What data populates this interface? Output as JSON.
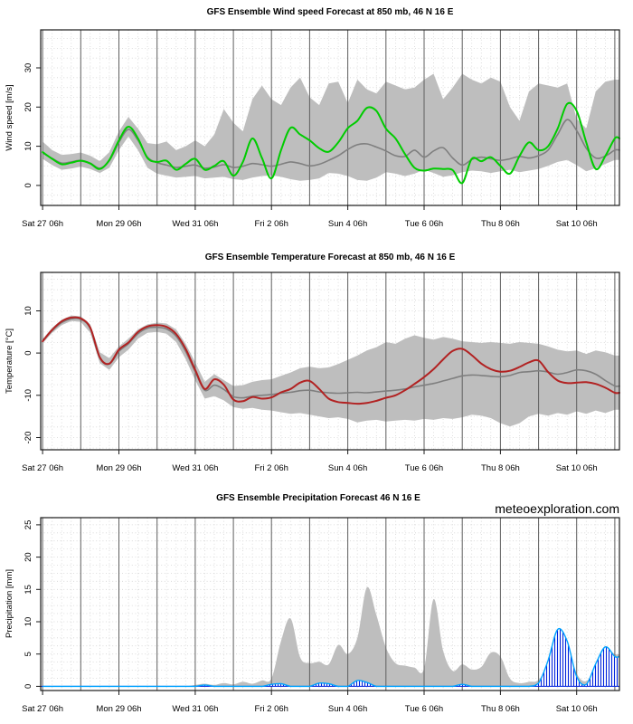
{
  "watermark": {
    "text": "meteoexploration.com",
    "color": "#4a7ab0"
  },
  "x_axis": {
    "tick_labels": [
      "Sat 27 06h",
      "Mon 29 06h",
      "Wed 31 06h",
      "Fri 2 06h",
      "Sun 4 06h",
      "Tue 6 06h",
      "Thu 8 06h",
      "Sat 10 06h"
    ],
    "tick_days": [
      0,
      2,
      4,
      6,
      8,
      10,
      12,
      14
    ],
    "num_day_lines": 15,
    "minor_tick_days": 0.25
  },
  "colors": {
    "band": "#bebebe",
    "ensemble_mean": "#7f7f7f",
    "wind_control": "#00cc00",
    "temp_control": "#b22222",
    "precip_control_hatch": "#0022dd",
    "precip_control_outline": "#00a3ff",
    "day_gridline": "#5f5f5f",
    "minor_grid": "#d4d4d4",
    "axis": "#1a1a1a"
  },
  "chart_data": [
    {
      "type": "line",
      "title": "GFS Ensemble Wind speed Forecast at 850 mb, 46 N 16 E",
      "ylabel": "Wind speed [m/s]",
      "ylim": [
        -5.1,
        39.7
      ],
      "yticks": [
        0,
        10,
        20,
        30
      ],
      "grid_step_y": 2.5,
      "x_step_days": 0.25,
      "series": [
        {
          "name": "ensemble spread",
          "kind": "band",
          "upper": [
            11.2,
            9.0,
            7.8,
            8.0,
            8.4,
            7.6,
            6.2,
            8.5,
            13.8,
            17.5,
            14.5,
            10.8,
            10.5,
            11.2,
            9.0,
            10.0,
            11.5,
            10.0,
            13.0,
            19.5,
            16.0,
            13.8,
            22.0,
            25.5,
            22.0,
            20.5,
            25.0,
            27.5,
            22.5,
            20.5,
            26.0,
            26.5,
            21.0,
            27.0,
            24.5,
            23.5,
            26.5,
            25.5,
            24.5,
            25.0,
            27.0,
            28.5,
            22.0,
            25.0,
            28.5,
            27.0,
            26.0,
            27.5,
            26.5,
            20.0,
            16.5,
            24.0,
            26.0,
            25.5,
            25.0,
            26.0,
            17.0,
            14.5,
            24.0,
            26.5,
            27.0
          ],
          "lower": [
            6.8,
            5.2,
            4.0,
            4.3,
            4.8,
            4.2,
            3.2,
            4.5,
            9.0,
            12.5,
            9.0,
            4.5,
            3.0,
            2.5,
            2.0,
            2.2,
            2.4,
            1.8,
            2.0,
            2.2,
            1.6,
            1.4,
            2.0,
            2.4,
            2.6,
            2.2,
            1.6,
            1.2,
            1.4,
            1.8,
            3.2,
            3.0,
            2.4,
            1.4,
            1.2,
            2.0,
            3.4,
            3.0,
            2.4,
            3.0,
            4.0,
            3.2,
            2.2,
            2.6,
            3.4,
            3.8,
            3.6,
            3.2,
            3.6,
            4.0,
            3.4,
            3.8,
            4.2,
            5.0,
            6.0,
            6.5,
            5.2,
            3.6,
            4.4,
            5.5,
            6.5
          ]
        },
        {
          "name": "ensemble mean",
          "kind": "line",
          "color_key": "ensemble_mean",
          "width": 1.6,
          "values": [
            8.3,
            6.9,
            5.7,
            6.0,
            6.4,
            5.7,
            4.4,
            6.3,
            11.0,
            14.3,
            11.5,
            7.2,
            5.8,
            5.2,
            4.6,
            4.9,
            5.2,
            4.4,
            4.7,
            5.3,
            4.6,
            4.9,
            5.6,
            5.3,
            4.9,
            5.4,
            6.0,
            5.6,
            5.0,
            5.4,
            6.4,
            7.6,
            9.2,
            10.4,
            10.6,
            9.8,
            8.8,
            7.6,
            7.4,
            9.0,
            7.2,
            8.8,
            9.6,
            7.0,
            5.2,
            6.6,
            7.2,
            6.8,
            6.4,
            6.8,
            7.4,
            7.0,
            7.6,
            9.0,
            13.0,
            16.8,
            14.0,
            9.5,
            7.0,
            7.5,
            9.0
          ]
        },
        {
          "name": "control run",
          "kind": "line",
          "color_key": "wind_control",
          "width": 2,
          "values": [
            8.5,
            6.8,
            5.4,
            5.8,
            6.3,
            5.6,
            4.2,
            6.5,
            11.5,
            15.0,
            12.0,
            7.0,
            6.0,
            6.3,
            4.0,
            5.5,
            6.8,
            4.0,
            5.0,
            6.2,
            2.5,
            6.0,
            12.0,
            7.0,
            1.8,
            9.0,
            14.7,
            13.0,
            11.5,
            9.5,
            8.6,
            11.0,
            14.6,
            16.5,
            19.8,
            19.0,
            14.5,
            12.0,
            8.0,
            4.5,
            3.8,
            4.3,
            4.2,
            3.9,
            0.6,
            6.8,
            6.2,
            7.2,
            5.0,
            3.0,
            7.5,
            11.0,
            9.0,
            10.0,
            14.5,
            20.8,
            19.0,
            11.0,
            4.2,
            7.5,
            12.0
          ]
        }
      ]
    },
    {
      "type": "line",
      "title": "GFS Ensemble Temperature Forecast at 850 mb, 46 N 16 E",
      "ylabel": "Temperature [°C]",
      "ylim": [
        -22.9,
        19.1
      ],
      "yticks": [
        10,
        0,
        -10,
        -20
      ],
      "grid_step_y": 2.5,
      "x_step_days": 0.25,
      "series": [
        {
          "name": "ensemble spread",
          "kind": "band",
          "upper": [
            3.3,
            6.0,
            7.9,
            8.9,
            8.7,
            6.8,
            0.2,
            -1.2,
            1.6,
            3.4,
            5.6,
            6.8,
            7.2,
            7.0,
            5.6,
            2.2,
            -2.2,
            -6.8,
            -5.0,
            -6.4,
            -7.8,
            -7.6,
            -6.8,
            -6.4,
            -6.2,
            -5.4,
            -4.6,
            -3.6,
            -3.2,
            -3.6,
            -3.4,
            -2.6,
            -1.6,
            -0.6,
            0.6,
            1.4,
            2.6,
            2.2,
            3.4,
            4.2,
            3.6,
            3.2,
            3.8,
            3.4,
            2.8,
            2.6,
            2.4,
            2.6,
            2.4,
            2.2,
            2.6,
            2.4,
            2.2,
            1.6,
            0.8,
            0.4,
            0.6,
            -0.2,
            0.6,
            0.2,
            -0.6
          ],
          "lower": [
            2.3,
            4.8,
            6.6,
            7.6,
            7.4,
            4.8,
            -2.4,
            -4.0,
            -1.0,
            0.8,
            3.4,
            4.8,
            5.0,
            4.6,
            2.6,
            -1.4,
            -6.4,
            -10.8,
            -10.2,
            -11.2,
            -12.8,
            -13.2,
            -13.0,
            -13.4,
            -13.6,
            -14.0,
            -14.4,
            -14.2,
            -14.6,
            -15.0,
            -15.4,
            -15.2,
            -15.6,
            -16.4,
            -16.0,
            -15.8,
            -16.2,
            -16.0,
            -15.8,
            -16.0,
            -15.6,
            -15.8,
            -15.4,
            -15.6,
            -15.2,
            -14.6,
            -14.8,
            -15.4,
            -16.6,
            -17.4,
            -16.6,
            -15.0,
            -14.4,
            -14.8,
            -14.2,
            -14.6,
            -13.8,
            -14.4,
            -13.6,
            -14.2,
            -13.4
          ]
        },
        {
          "name": "ensemble mean",
          "kind": "line",
          "color_key": "ensemble_mean",
          "width": 1.6,
          "values": [
            2.8,
            5.3,
            7.2,
            8.1,
            8.0,
            5.8,
            -1.2,
            -2.6,
            0.4,
            2.2,
            4.6,
            5.9,
            6.1,
            5.7,
            4.0,
            0.4,
            -4.4,
            -8.8,
            -7.6,
            -8.6,
            -10.3,
            -10.6,
            -10.2,
            -10.0,
            -9.8,
            -9.5,
            -9.3,
            -8.9,
            -8.8,
            -9.2,
            -9.4,
            -9.5,
            -9.4,
            -9.3,
            -9.4,
            -9.2,
            -9.0,
            -8.8,
            -8.5,
            -8.0,
            -7.6,
            -7.2,
            -6.6,
            -6.0,
            -5.4,
            -5.2,
            -5.3,
            -5.5,
            -5.6,
            -5.3,
            -4.6,
            -4.4,
            -4.2,
            -4.5,
            -5.0,
            -4.6,
            -4.0,
            -4.2,
            -5.0,
            -6.5,
            -7.8
          ]
        },
        {
          "name": "control run",
          "kind": "line",
          "color_key": "temp_control",
          "width": 2,
          "values": [
            2.8,
            5.5,
            7.5,
            8.4,
            8.2,
            6.0,
            -1.0,
            -2.5,
            0.8,
            2.5,
            5.0,
            6.3,
            6.6,
            6.2,
            4.5,
            1.0,
            -4.0,
            -8.5,
            -6.2,
            -7.5,
            -11.0,
            -11.4,
            -10.4,
            -10.8,
            -10.5,
            -9.3,
            -8.5,
            -7.0,
            -6.6,
            -8.5,
            -10.8,
            -11.6,
            -11.8,
            -12.0,
            -11.8,
            -11.3,
            -10.6,
            -10.0,
            -8.8,
            -7.3,
            -5.7,
            -3.8,
            -1.5,
            0.5,
            1.0,
            -0.5,
            -2.5,
            -3.8,
            -4.4,
            -4.2,
            -3.3,
            -2.2,
            -1.8,
            -4.5,
            -6.5,
            -7.1,
            -7.0,
            -6.9,
            -7.3,
            -8.2,
            -9.4
          ]
        }
      ]
    },
    {
      "type": "area",
      "title": "GFS Ensemble Precipitation Forecast 46 N 16 E",
      "ylabel": "Precipitation [mm]",
      "ylim": [
        -0.65,
        26.1
      ],
      "yticks": [
        0,
        5,
        10,
        15,
        20,
        25
      ],
      "grid_step_y": 1.25,
      "x_step_days": 0.25,
      "series": [
        {
          "name": "ensemble mean",
          "kind": "area",
          "color_key": "band",
          "values": [
            0,
            0,
            0,
            0,
            0,
            0,
            0,
            0,
            0,
            0,
            0,
            0,
            0,
            0,
            0,
            0,
            0.2,
            0.4,
            0.2,
            0.5,
            0.3,
            0.7,
            0.4,
            0.9,
            1.2,
            7.0,
            10.5,
            4.5,
            3.6,
            3.8,
            3.4,
            6.4,
            5.0,
            7.5,
            15.3,
            11.0,
            6.0,
            3.6,
            3.2,
            2.9,
            2.8,
            13.5,
            5.5,
            2.4,
            3.4,
            2.6,
            3.0,
            5.2,
            4.6,
            1.2,
            0.5,
            0.7,
            1.0,
            3.5,
            8.2,
            6.5,
            2.0,
            0.8,
            3.0,
            5.8,
            5.0
          ]
        },
        {
          "name": "control run",
          "kind": "area-hatched",
          "values": [
            0,
            0,
            0,
            0,
            0,
            0,
            0,
            0,
            0,
            0,
            0,
            0,
            0,
            0,
            0,
            0,
            0,
            0.2,
            0,
            0,
            0,
            0,
            0,
            0,
            0.3,
            0.4,
            0,
            0,
            0,
            0.5,
            0.4,
            0,
            0,
            0.9,
            0.6,
            0,
            0,
            0,
            0,
            0,
            0,
            0,
            0,
            0,
            0.3,
            0,
            0,
            0,
            0,
            0,
            0,
            0,
            0.5,
            4.0,
            8.8,
            7.0,
            1.5,
            0.3,
            3.5,
            6.1,
            4.6
          ]
        }
      ]
    }
  ]
}
